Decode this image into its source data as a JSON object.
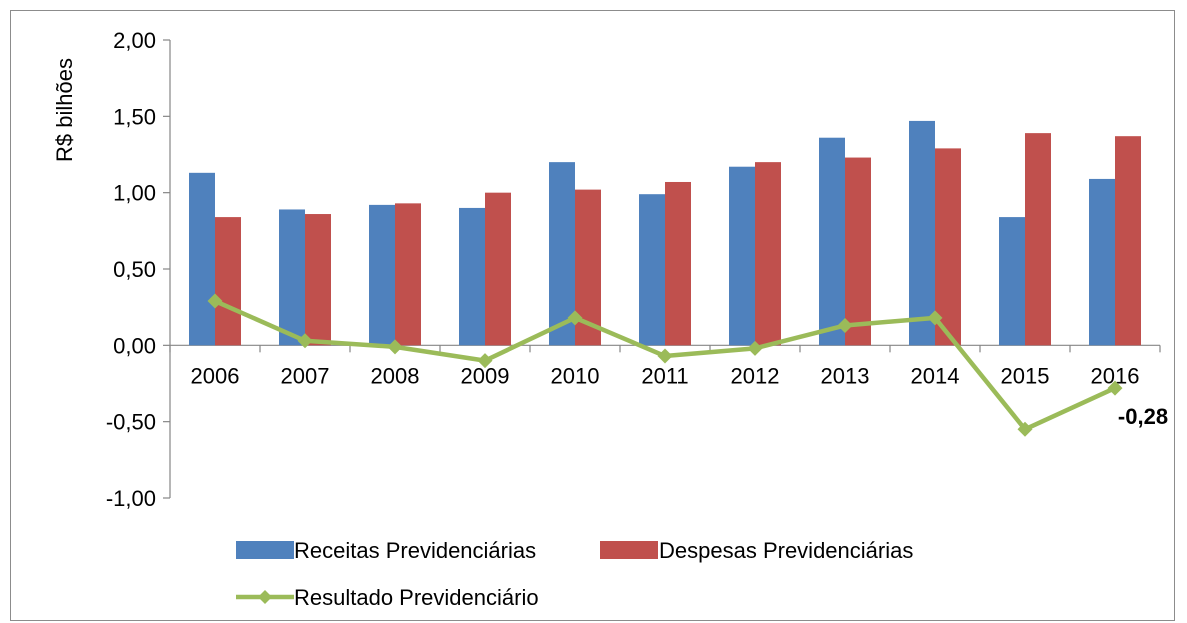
{
  "chart_data": {
    "type": "bar",
    "categories": [
      "2006",
      "2007",
      "2008",
      "2009",
      "2010",
      "2011",
      "2012",
      "2013",
      "2014",
      "2015",
      "2016"
    ],
    "series": [
      {
        "name": "Receitas Previdenciárias",
        "kind": "bar",
        "color": "#4f81bd",
        "values": [
          1.13,
          0.89,
          0.92,
          0.9,
          1.2,
          0.99,
          1.17,
          1.36,
          1.47,
          0.84,
          1.09
        ]
      },
      {
        "name": "Despesas Previdenciárias",
        "kind": "bar",
        "color": "#c0504d",
        "values": [
          0.84,
          0.86,
          0.93,
          1.0,
          1.02,
          1.07,
          1.2,
          1.23,
          1.29,
          1.39,
          1.37
        ]
      },
      {
        "name": "Resultado Previdenciário",
        "kind": "line",
        "color": "#9bbb59",
        "values": [
          0.29,
          0.03,
          -0.01,
          -0.1,
          0.18,
          -0.07,
          -0.02,
          0.13,
          0.18,
          -0.55,
          -0.28
        ]
      }
    ],
    "ylabel": "R$ bilhões",
    "xlabel": "",
    "title": "",
    "ylim": [
      -1.0,
      2.0
    ],
    "yticks": [
      "2,00",
      "1,50",
      "1,00",
      "0,50",
      "0,00",
      "-0,50",
      "-1,00"
    ],
    "ytick_values": [
      2.0,
      1.5,
      1.0,
      0.5,
      0.0,
      -0.5,
      -1.0
    ],
    "annotation": {
      "text": "-0,28",
      "category": "2016",
      "series": "Resultado Previdenciário"
    },
    "legend_placement": "bottom",
    "grid": false
  }
}
